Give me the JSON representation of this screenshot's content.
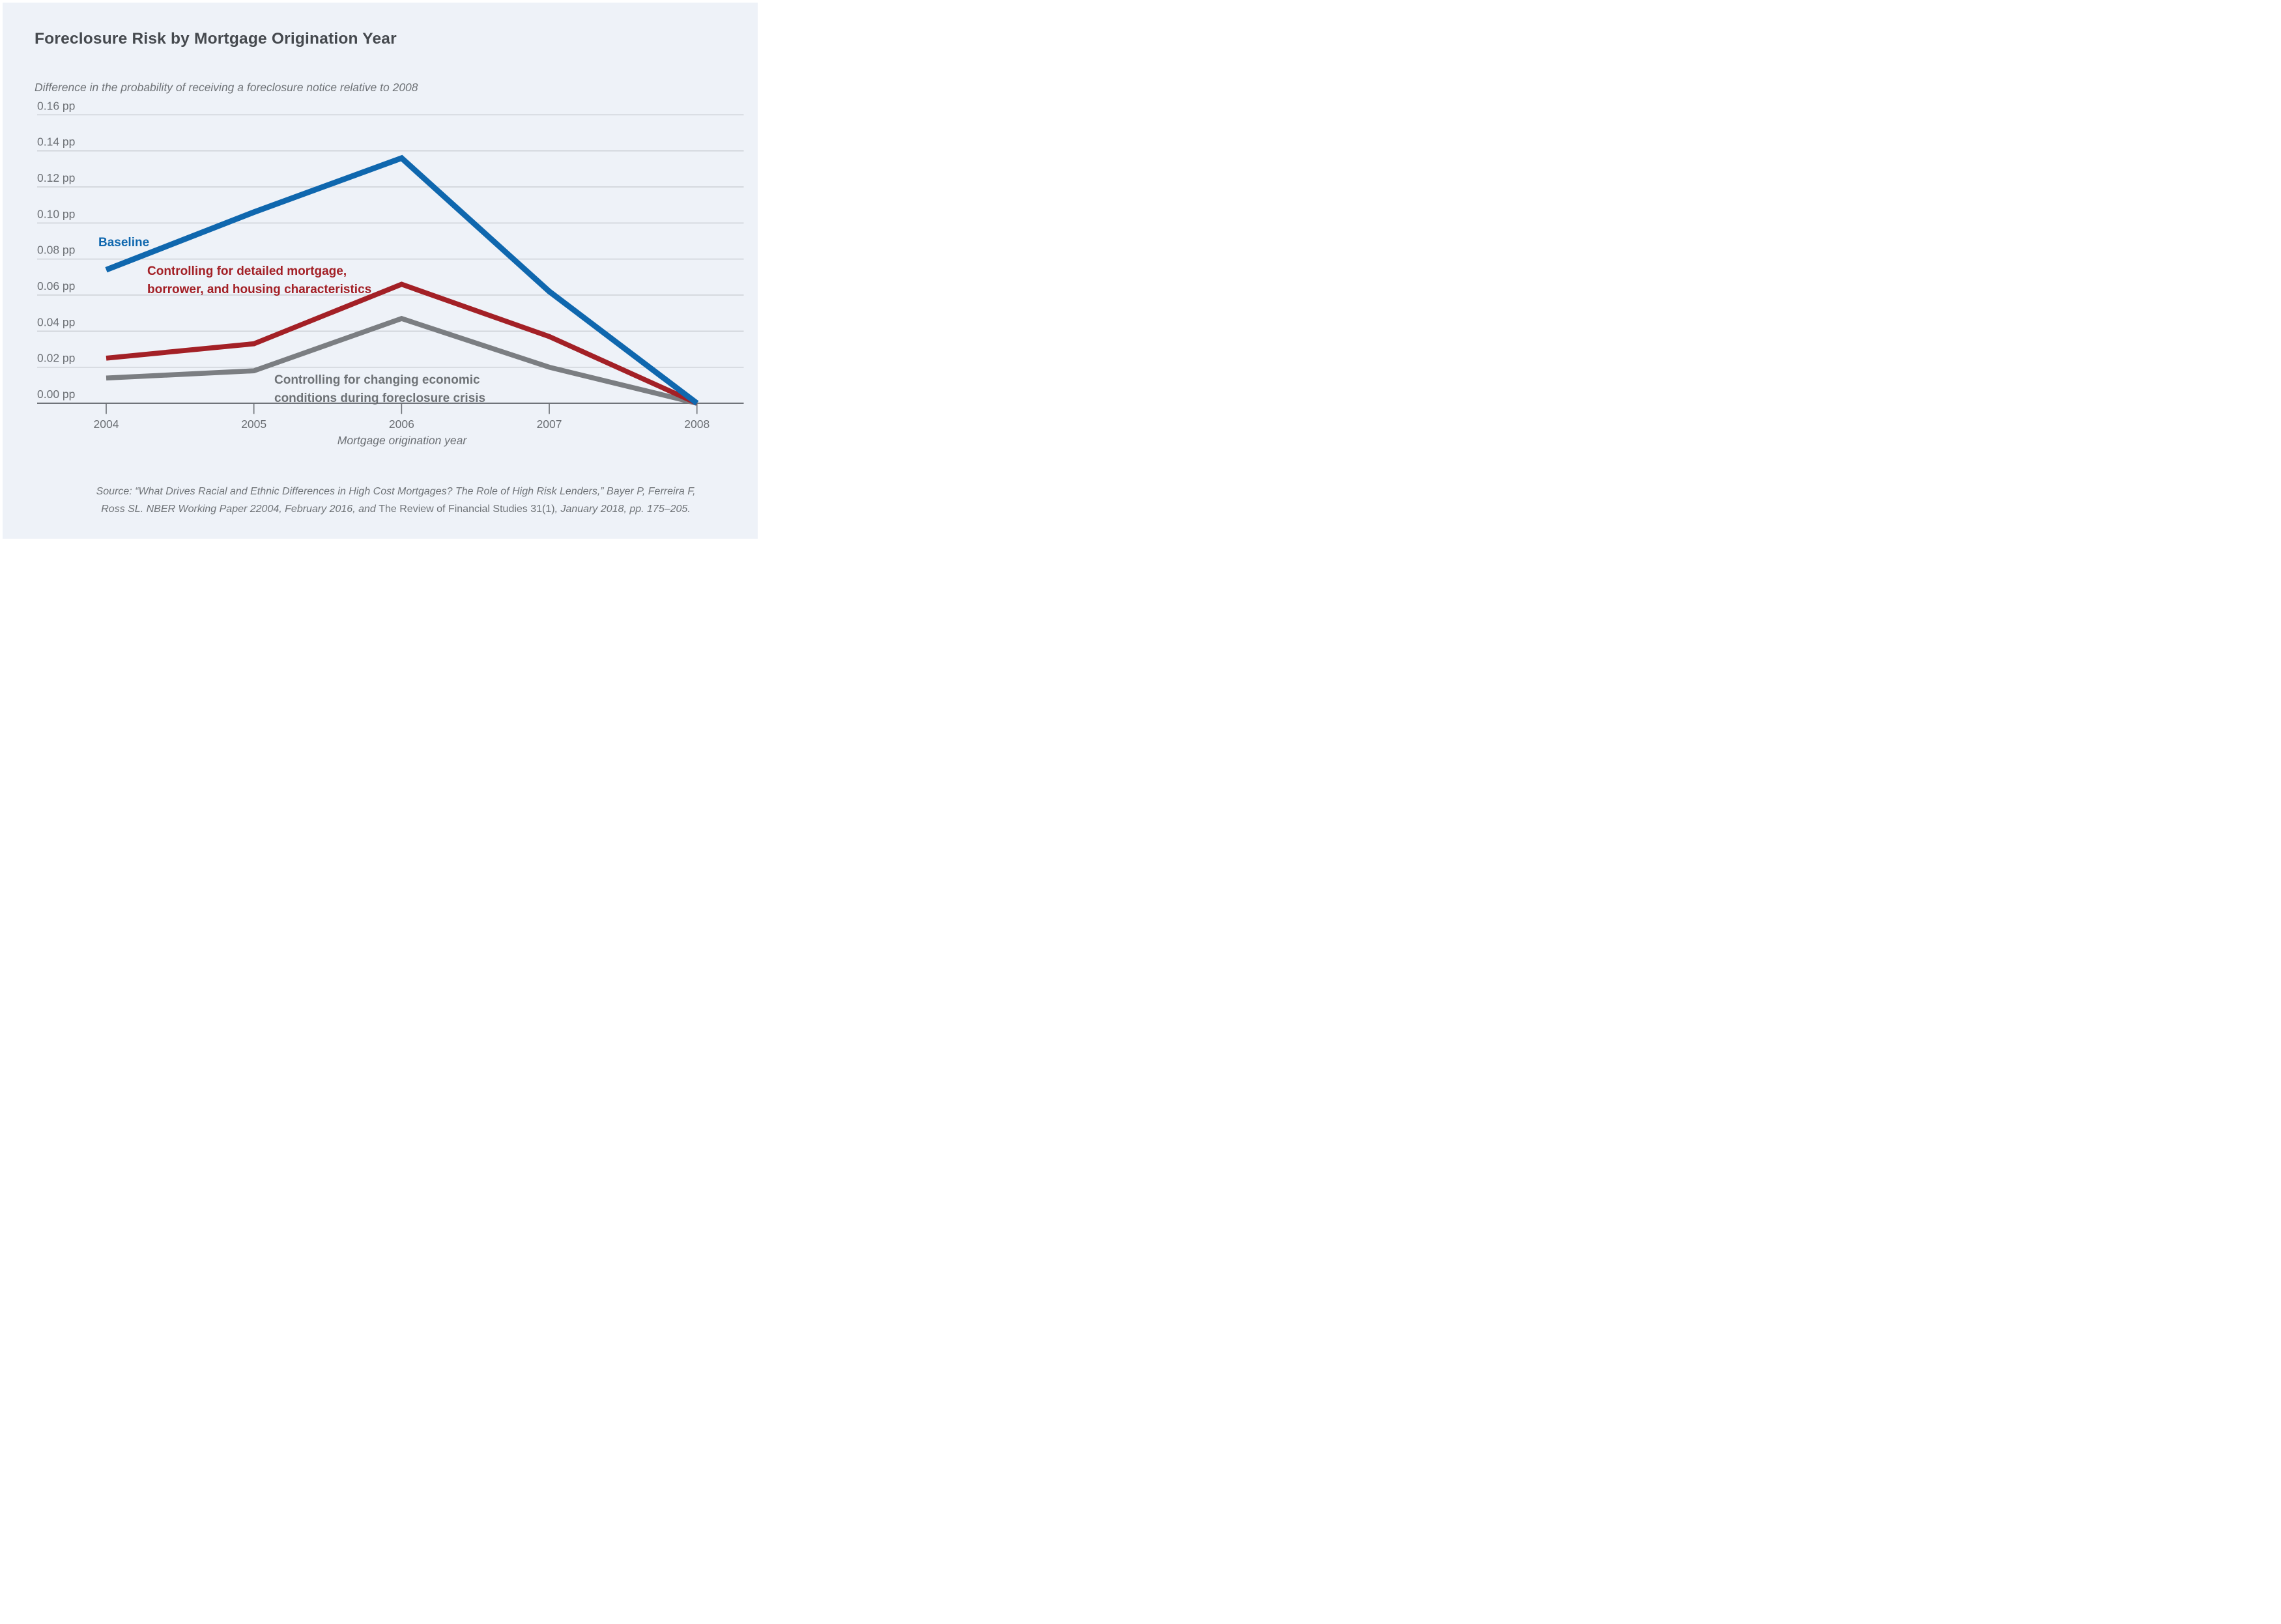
{
  "page": {
    "title": "Foreclosure Risk by Mortgage Origination Year",
    "subtitle": "Difference in the probability of receiving a foreclosure notice relative to 2008"
  },
  "chart_data": {
    "type": "line",
    "x": [
      2004,
      2005,
      2006,
      2007,
      2008
    ],
    "x_tick_labels": [
      "2004",
      "2005",
      "2006",
      "2007",
      "2008"
    ],
    "xlabel": "Mortgage origination year",
    "unit": "percentage points (pp)",
    "ylim": [
      0,
      0.16
    ],
    "y_tick_step": 0.02,
    "y_tick_labels": [
      "0.16 pp",
      "0.14 pp",
      "0.12 pp",
      "0.10 pp",
      "0.08 pp",
      "0.06 pp",
      "0.04 pp",
      "0.02 pp",
      "0.00 pp"
    ],
    "grid": true,
    "legend_position": "inline-annotations",
    "series": [
      {
        "name": "Baseline",
        "color": "#0f67ae",
        "values": [
          0.074,
          0.106,
          0.136,
          0.062,
          0.0
        ]
      },
      {
        "name": "Controlling for detailed mortgage, borrower, and housing characteristics",
        "color": "#a32026",
        "values": [
          0.025,
          0.033,
          0.066,
          0.037,
          0.0
        ]
      },
      {
        "name": "Controlling for changing economic conditions during foreclosure crisis",
        "color": "#7b7e82",
        "values": [
          0.014,
          0.018,
          0.047,
          0.02,
          0.0
        ]
      }
    ]
  },
  "annotations": {
    "baseline_label": "Baseline",
    "red_label_line1": "Controlling for detailed mortgage,",
    "red_label_line2": "borrower, and housing characteristics",
    "gray_label_line1": "Controlling for changing economic",
    "gray_label_line2": "conditions during foreclosure crisis"
  },
  "source": {
    "line1": "Source: “What Drives Racial and Ethnic Differences in High Cost Mortgages? The Role of High Risk Lenders,” Bayer P, Ferreira F,",
    "line2_italic_pre": "Ross SL. NBER Working Paper 22004, February 2016, and ",
    "line2_roman": "The Review of Financial Studies 31(1)",
    "line2_italic_post": ", January 2018, pp. 175–205."
  },
  "colors": {
    "panel_background": "#eef2f8",
    "outer_border": "#ffffff",
    "gridline": "#c9cdd2",
    "zero_axis": "#70747a",
    "tick": "#6b6f74",
    "title_text": "#45494e",
    "secondary_text": "#6b6f74",
    "baseline_series": "#0f67ae",
    "controls_series": "#a32026",
    "economic_series": "#7b7e82"
  }
}
